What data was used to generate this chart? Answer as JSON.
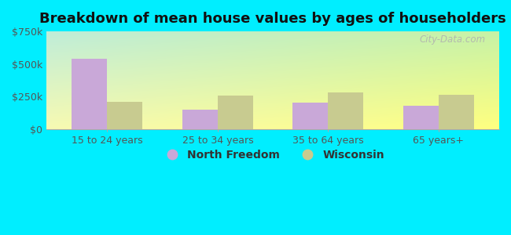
{
  "title": "Breakdown of mean house values by ages of householders",
  "categories": [
    "15 to 24 years",
    "25 to 34 years",
    "35 to 64 years",
    "65 years+"
  ],
  "north_freedom_values": [
    540000,
    148000,
    205000,
    178000
  ],
  "wisconsin_values": [
    210000,
    258000,
    283000,
    262000
  ],
  "north_freedom_color": "#c9a8d8",
  "wisconsin_color": "#c8cb90",
  "ylim": [
    0,
    750000
  ],
  "yticks": [
    0,
    250000,
    500000,
    750000
  ],
  "ytick_labels": [
    "$0",
    "$250k",
    "$500k",
    "$750k"
  ],
  "legend_labels": [
    "North Freedom",
    "Wisconsin"
  ],
  "watermark": "City-Data.com",
  "outer_bg": "#00eeff",
  "bar_width": 0.32,
  "title_fontsize": 13,
  "axis_fontsize": 9,
  "legend_fontsize": 10
}
